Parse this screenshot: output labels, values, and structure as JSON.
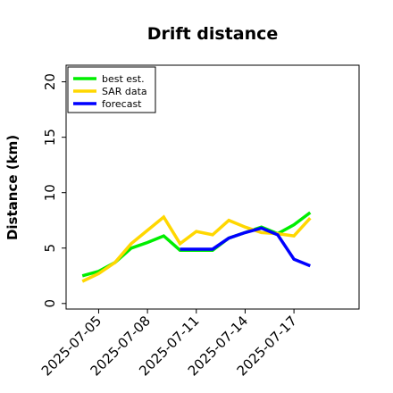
{
  "chart_data": {
    "type": "line",
    "title": "Drift distance",
    "xlabel": "",
    "ylabel": "Distance (km)",
    "xlim": [
      "2025-07-03",
      "2025-07-21"
    ],
    "ylim": [
      -0.5,
      21.5
    ],
    "yticks": [
      0,
      5,
      10,
      15,
      20
    ],
    "xticks": [
      "2025-07-05",
      "2025-07-08",
      "2025-07-11",
      "2025-07-14",
      "2025-07-17"
    ],
    "grid": false,
    "legend_position": "top-left",
    "series": [
      {
        "name": "best est.",
        "color": "#00ee00",
        "x": [
          "2025-07-04",
          "2025-07-05",
          "2025-07-06",
          "2025-07-07",
          "2025-07-08",
          "2025-07-09",
          "2025-07-10",
          "2025-07-11",
          "2025-07-12",
          "2025-07-13",
          "2025-07-14",
          "2025-07-15",
          "2025-07-16",
          "2025-07-17",
          "2025-07-18"
        ],
        "y": [
          2.5,
          2.9,
          3.7,
          5.0,
          5.5,
          6.1,
          4.8,
          4.8,
          4.8,
          5.9,
          6.4,
          6.9,
          6.3,
          7.1,
          8.2
        ]
      },
      {
        "name": "SAR data",
        "color": "#ffd700",
        "x": [
          "2025-07-04",
          "2025-07-05",
          "2025-07-06",
          "2025-07-07",
          "2025-07-08",
          "2025-07-09",
          "2025-07-10",
          "2025-07-11",
          "2025-07-12",
          "2025-07-13",
          "2025-07-14",
          "2025-07-15",
          "2025-07-16",
          "2025-07-17",
          "2025-07-18"
        ],
        "y": [
          2.0,
          2.7,
          3.7,
          5.4,
          6.6,
          7.8,
          5.4,
          6.5,
          6.2,
          7.5,
          6.9,
          6.4,
          6.3,
          6.1,
          7.7
        ]
      },
      {
        "name": "forecast",
        "color": "#0000ff",
        "x": [
          "2025-07-10",
          "2025-07-11",
          "2025-07-12",
          "2025-07-13",
          "2025-07-14",
          "2025-07-15",
          "2025-07-16",
          "2025-07-17",
          "2025-07-18"
        ],
        "y": [
          4.9,
          4.9,
          4.9,
          5.9,
          6.4,
          6.8,
          6.2,
          4.0,
          3.4
        ]
      }
    ]
  }
}
